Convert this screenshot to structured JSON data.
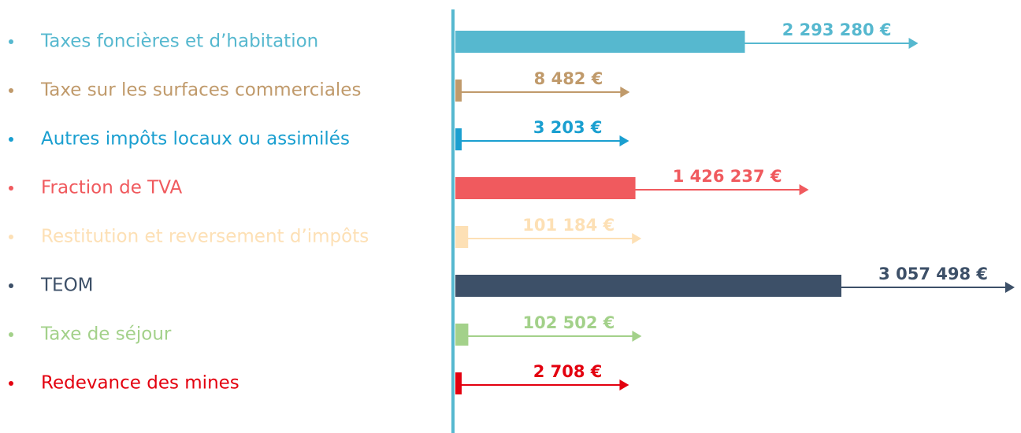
{
  "chart_data": {
    "type": "bar",
    "orientation": "horizontal",
    "categories": [
      "Taxes foncières et d’habitation",
      "Taxe sur les surfaces commerciales",
      "Autres impôts locaux ou assimilés",
      "Fraction de TVA",
      "Restitution et reversement d’impôts",
      "TEOM",
      "Taxe de séjour",
      "Redevance des mines"
    ],
    "values": [
      2293280,
      8482,
      3203,
      1426237,
      101184,
      3057498,
      102502,
      2708
    ],
    "value_labels": [
      "2 293 280 €",
      "8 482 €",
      "3 203 €",
      "1 426 237 €",
      "101 184 €",
      "3 057 498 €",
      "102 502 €",
      "2 708 €"
    ],
    "colors": [
      "#56b8cf",
      "#c09a6b",
      "#1a9fd0",
      "#f05a5e",
      "#fde0b5",
      "#3d5068",
      "#a3d18a",
      "#e3000f"
    ]
  }
}
